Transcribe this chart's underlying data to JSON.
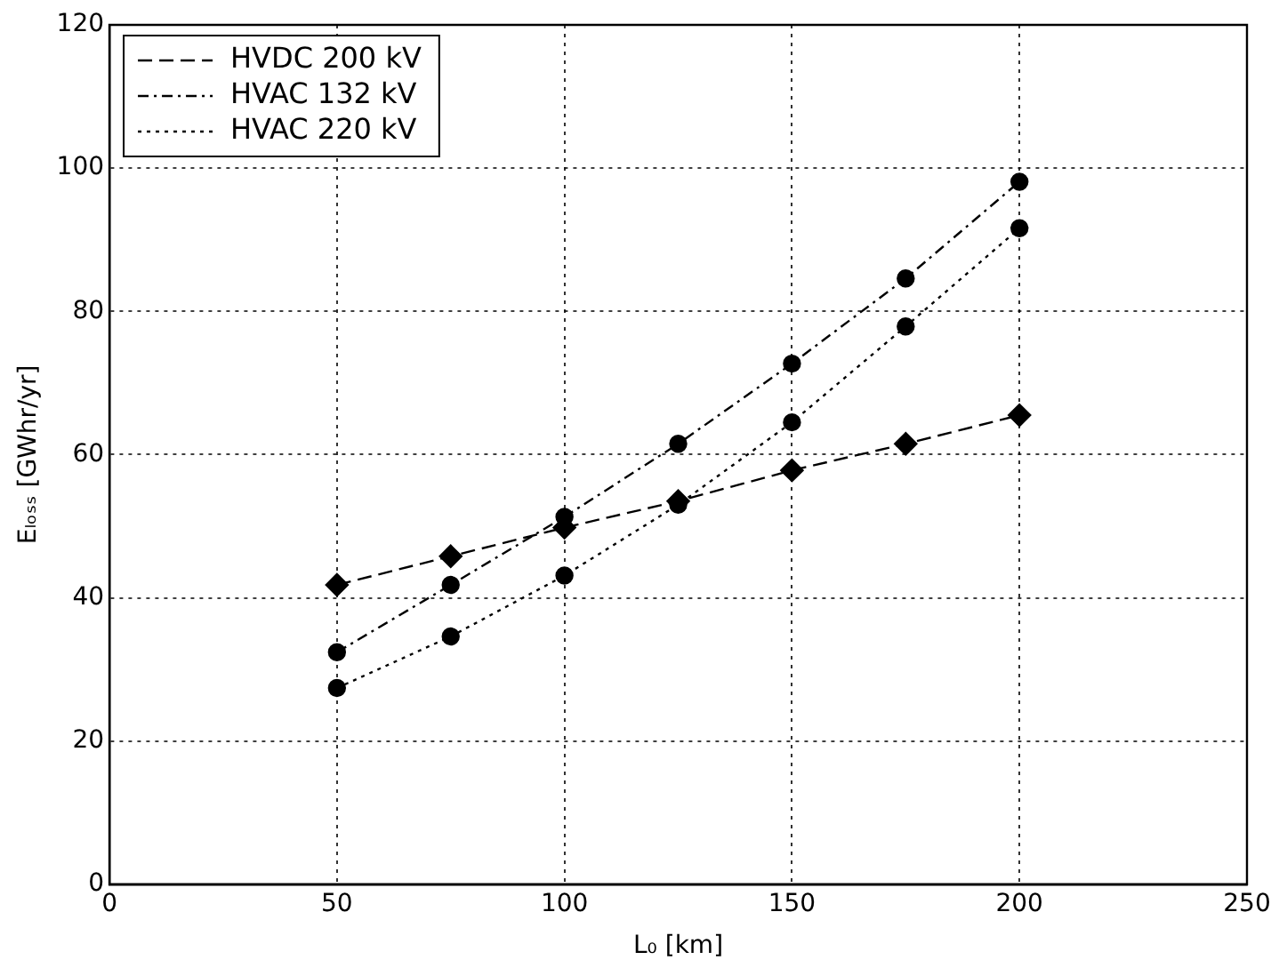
{
  "chart_data": {
    "type": "line",
    "xlabel": "L₀ [km]",
    "ylabel": "Eₗₒₛₛ [GWhr/yr]",
    "x": [
      50,
      75,
      100,
      125,
      150,
      175,
      200
    ],
    "series": [
      {
        "name": "HVDC 200 kV",
        "color": "#000000",
        "line_style": "dashed",
        "marker": "diamond",
        "values": [
          41.8,
          45.8,
          49.8,
          53.5,
          57.8,
          61.5,
          65.5
        ]
      },
      {
        "name": "HVAC 132 kV",
        "color": "#000000",
        "line_style": "dashdot",
        "marker": "circle",
        "values": [
          32.4,
          41.8,
          51.3,
          61.5,
          72.7,
          84.6,
          98.1
        ]
      },
      {
        "name": "HVAC 220 kV",
        "color": "#000000",
        "line_style": "dotted",
        "marker": "circle",
        "values": [
          27.4,
          34.6,
          43.1,
          53.0,
          64.5,
          77.9,
          91.6
        ]
      }
    ],
    "xlim": [
      0,
      250
    ],
    "xticks": [
      0,
      50,
      100,
      150,
      200,
      250
    ],
    "ylim": [
      0,
      120
    ],
    "yticks": [
      0,
      20,
      40,
      60,
      80,
      100,
      120
    ],
    "grid": true,
    "legend": "top left"
  }
}
